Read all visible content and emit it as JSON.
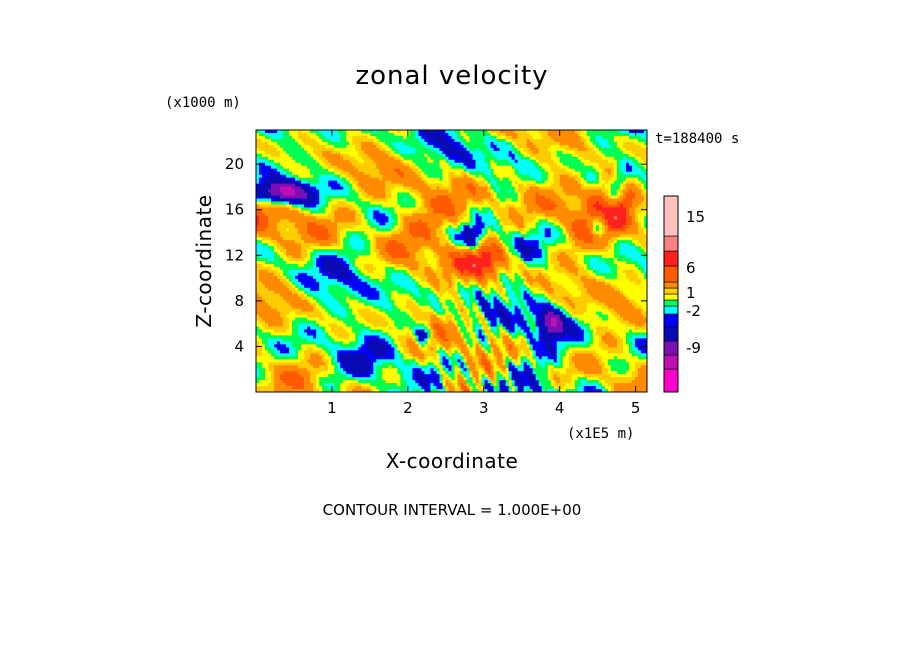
{
  "chart_data": {
    "type": "heatmap",
    "title": "zonal velocity",
    "xlabel": "X-coordinate",
    "ylabel": "Z-coordinate",
    "x_units": "(x1E5 m)",
    "y_units": "(x1000 m)",
    "time_label": "t=188400 s",
    "footer": "CONTOUR INTERVAL = 1.000E+00",
    "xlim": [
      0,
      5.15
    ],
    "ylim": [
      0,
      23
    ],
    "xticks": [
      "1",
      "2",
      "3",
      "4",
      "5"
    ],
    "yticks": [
      "4",
      "8",
      "12",
      "16",
      "20"
    ],
    "colorbar": {
      "labels": [
        "15",
        "6",
        "1",
        "-2",
        "-9"
      ],
      "colors": [
        "#ff00cc",
        "#c00fb4",
        "#7a0fb4",
        "#0a0ab4",
        "#0000ff",
        "#00ffff",
        "#00ff55",
        "#ffff00",
        "#ffcc00",
        "#ff8c00",
        "#ff5a00",
        "#ff2020",
        "#ff8080",
        "#ffc0c0"
      ]
    }
  }
}
